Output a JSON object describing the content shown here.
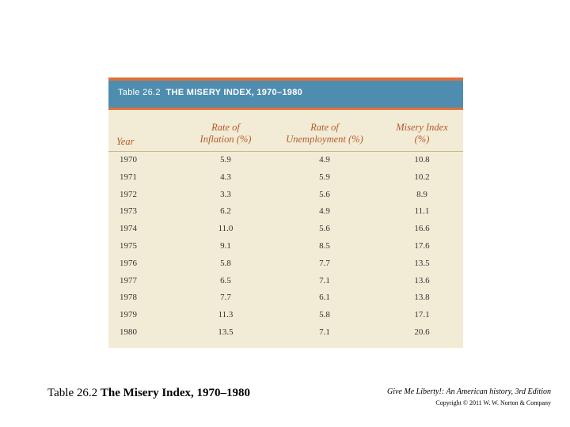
{
  "table": {
    "label": "Table 26.2",
    "title": "THE MISERY INDEX, 1970–1980",
    "headers": {
      "year": "Year",
      "inflation_line1": "Rate of",
      "inflation_line2": "Inflation (%)",
      "unemployment_line1": "Rate of",
      "unemployment_line2": "Unemployment (%)",
      "misery_line1": "Misery Index",
      "misery_line2": "(%)"
    },
    "rows": [
      {
        "year": "1970",
        "inflation": "5.9",
        "unemployment": "4.9",
        "misery": "10.8"
      },
      {
        "year": "1971",
        "inflation": "4.3",
        "unemployment": "5.9",
        "misery": "10.2"
      },
      {
        "year": "1972",
        "inflation": "3.3",
        "unemployment": "5.6",
        "misery": "8.9"
      },
      {
        "year": "1973",
        "inflation": "6.2",
        "unemployment": "4.9",
        "misery": "11.1"
      },
      {
        "year": "1974",
        "inflation": "11.0",
        "unemployment": "5.6",
        "misery": "16.6"
      },
      {
        "year": "1975",
        "inflation": "9.1",
        "unemployment": "8.5",
        "misery": "17.6"
      },
      {
        "year": "1976",
        "inflation": "5.8",
        "unemployment": "7.7",
        "misery": "13.5"
      },
      {
        "year": "1977",
        "inflation": "6.5",
        "unemployment": "7.1",
        "misery": "13.6"
      },
      {
        "year": "1978",
        "inflation": "7.7",
        "unemployment": "6.1",
        "misery": "13.8"
      },
      {
        "year": "1979",
        "inflation": "11.3",
        "unemployment": "5.8",
        "misery": "17.1"
      },
      {
        "year": "1980",
        "inflation": "13.5",
        "unemployment": "7.1",
        "misery": "20.6"
      }
    ]
  },
  "caption": {
    "label": "Table 26.2",
    "title": "The Misery Index, 1970–1980"
  },
  "footer": {
    "book": "Give Me Liberty!: An American history, 3rd Edition",
    "copyright": "Copyright © 2011 W. W. Norton & Company"
  },
  "colors": {
    "accent_orange": "#e0703a",
    "title_blue": "#4f8db0",
    "table_bg": "#f2ecd6",
    "header_text": "#b35a2a"
  }
}
